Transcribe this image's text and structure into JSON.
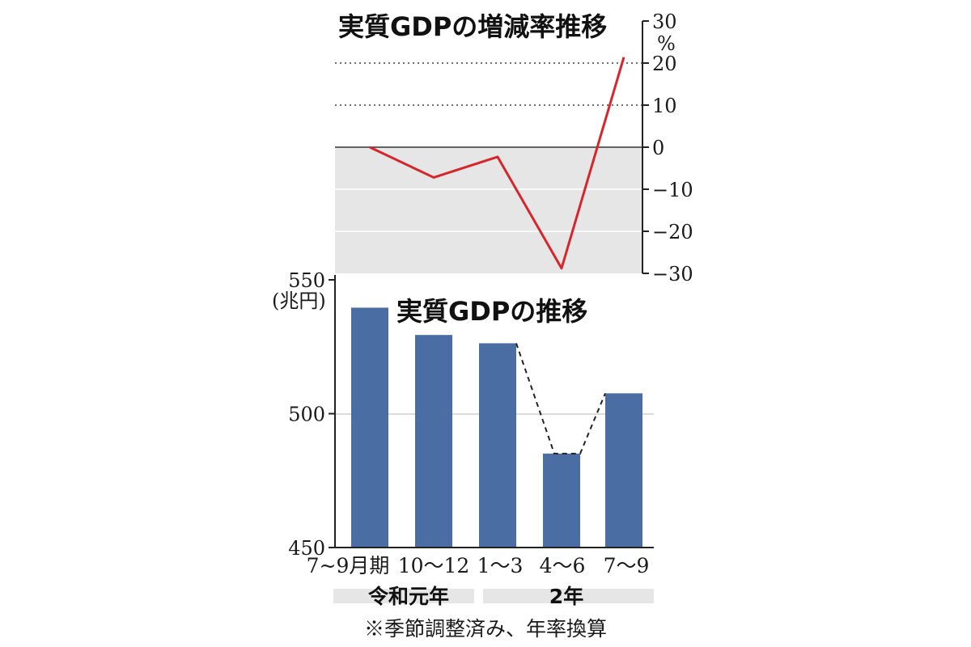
{
  "chart_data": [
    {
      "type": "line",
      "title": "実質GDPの増減率推移",
      "unit": "%",
      "ylim": [
        -30,
        30
      ],
      "yticks": [
        "30",
        "20",
        "10",
        "0",
        "−10",
        "−20",
        "−30"
      ],
      "gridlines": [
        10,
        20
      ],
      "categories": [
        "7~9月期",
        "10〜12",
        "1〜3",
        "4〜6",
        "7〜9"
      ],
      "values": [
        0,
        -7.2,
        -2.3,
        -28.8,
        21.4
      ],
      "colors": {
        "line": "#d7262b",
        "negative_fill": "#e6e6e6"
      }
    },
    {
      "type": "bar",
      "title": "実質GDPの推移",
      "unit": "(兆円)",
      "ylim": [
        450,
        550
      ],
      "yticks": [
        "550",
        "500",
        "450"
      ],
      "categories": [
        "7~9月期",
        "10〜12",
        "1〜3",
        "4〜6",
        "7〜9"
      ],
      "values": [
        539.6,
        529.4,
        526.3,
        485.1,
        507.6
      ],
      "colors": {
        "bar": "#4a6ea3"
      },
      "groups": [
        {
          "label": "令和元年",
          "span": [
            "7~9月期",
            "10〜12"
          ]
        },
        {
          "label": "2年",
          "span": [
            "1〜3",
            "7〜9"
          ]
        }
      ],
      "note": "※季節調整済み、年率換算"
    }
  ]
}
